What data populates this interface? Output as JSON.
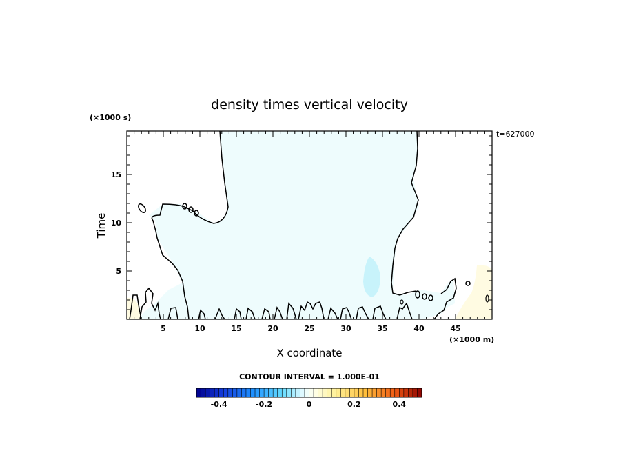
{
  "chart_data": {
    "type": "contour",
    "title": "density times vertical velocity",
    "xlabel": "X coordinate",
    "ylabel": "Time",
    "x_unit": "(×1000 m)",
    "y_unit": "(×1000 s)",
    "timestamp": "t=627000",
    "xlim": [
      0,
      50
    ],
    "ylim": [
      0,
      19.5
    ],
    "x_ticks": [
      5,
      10,
      15,
      20,
      25,
      30,
      35,
      40,
      45
    ],
    "y_ticks": [
      5,
      10,
      15
    ],
    "contour_interval_label": "CONTOUR INTERVAL = 1.000E-01",
    "colorbar": {
      "range": [
        -0.5,
        0.5
      ],
      "ticks": [
        -0.4,
        -0.2,
        0,
        0.2,
        0.4
      ],
      "tick_labels": [
        "-0.4",
        "-0.2",
        "0",
        "0.2",
        "0.4"
      ],
      "low_color": "#00008b",
      "mid_color": "#ffffff",
      "high_color": "#8b0000"
    },
    "fill_colors": {
      "near_zero_negative": "#f0ffff",
      "weak_negative": "#ccf5ff",
      "weak_positive": "#fffbe0"
    }
  }
}
